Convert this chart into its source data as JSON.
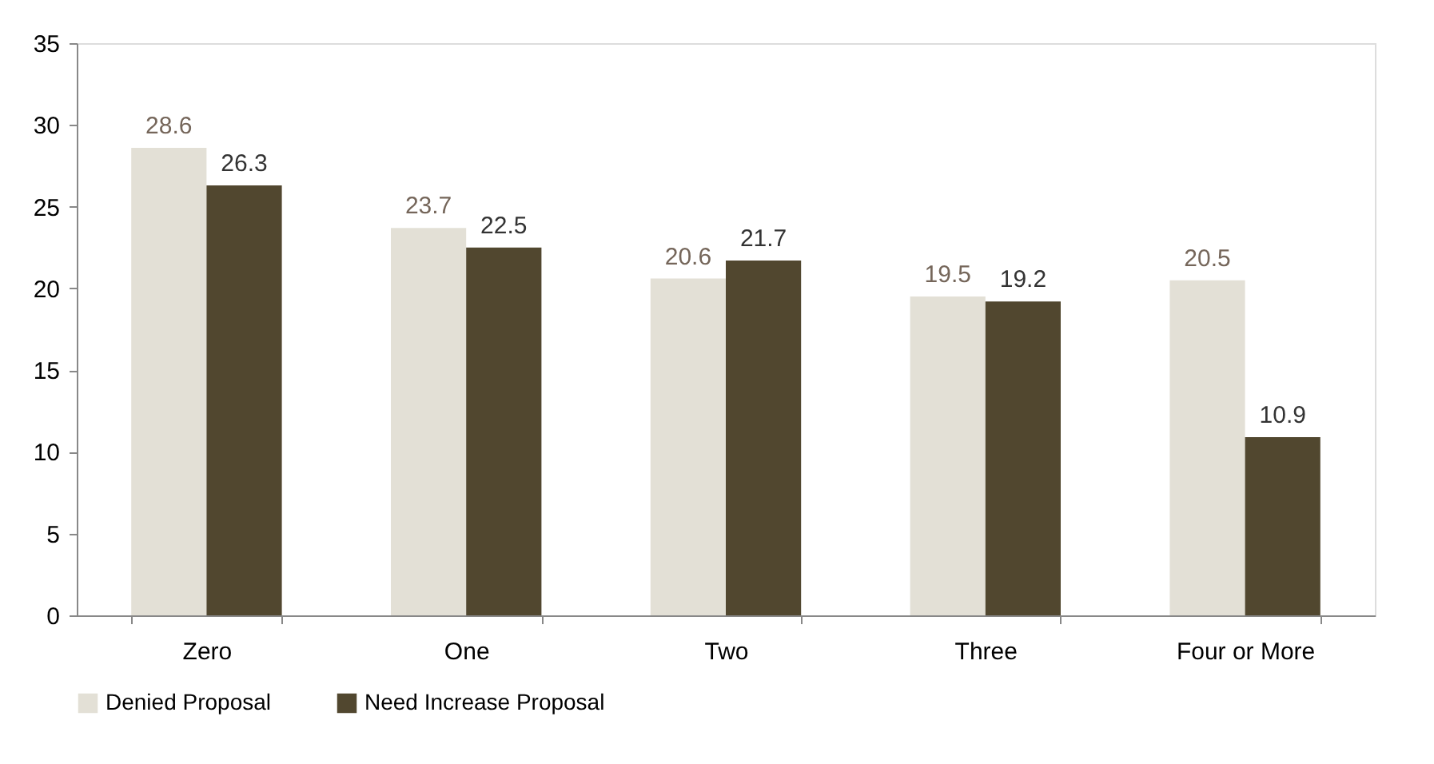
{
  "chart_data": {
    "type": "bar",
    "categories": [
      "Zero",
      "One",
      "Two",
      "Three",
      "Four or More"
    ],
    "series": [
      {
        "name": "Denied Proposal",
        "color": "#e3e0d6",
        "values": [
          28.6,
          23.7,
          20.6,
          19.5,
          20.5
        ]
      },
      {
        "name": "Need Increase Proposal",
        "color": "#51472f",
        "values": [
          26.3,
          22.5,
          21.7,
          19.2,
          10.9
        ]
      }
    ],
    "ylim": [
      0,
      35
    ],
    "yticks": [
      0,
      5,
      10,
      15,
      20,
      25,
      30,
      35
    ],
    "data_labels": true,
    "grid": false,
    "legend": "bottom"
  }
}
